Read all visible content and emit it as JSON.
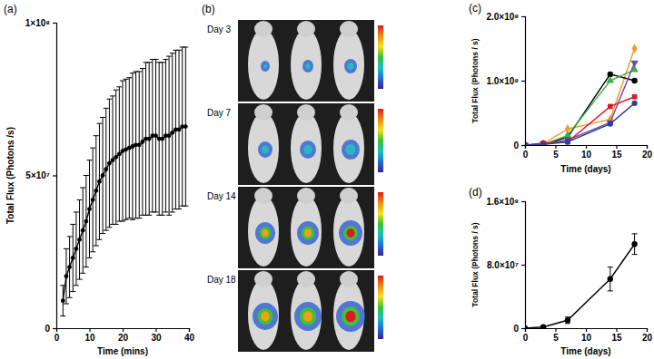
{
  "chart_data": [
    {
      "type": "line",
      "title": "(a)",
      "x_label": "Time (mins)",
      "y_label": "Total Flux (Photons /s)",
      "x": [
        2,
        3,
        4,
        5,
        6,
        7,
        8,
        9,
        10,
        11,
        12,
        13,
        14,
        15,
        16,
        17,
        18,
        19,
        20,
        21,
        22,
        23,
        24,
        25,
        26,
        27,
        28,
        29,
        30,
        31,
        32,
        33,
        34,
        35,
        36,
        37,
        38,
        39
      ],
      "values": [
        9000000,
        17000000,
        20000000,
        23000000,
        26000000,
        29000000,
        32000000,
        35000000,
        39000000,
        42000000,
        45000000,
        48000000,
        50000000,
        52000000,
        54000000,
        55000000,
        56000000,
        57000000,
        58000000,
        58500000,
        59000000,
        59500000,
        60000000,
        60000000,
        61000000,
        62000000,
        62000000,
        63000000,
        63000000,
        62000000,
        62000000,
        63000000,
        63000000,
        64000000,
        65000000,
        65000000,
        66000000,
        66000000
      ],
      "errors": [
        5000000,
        9000000,
        10000000,
        11000000,
        12000000,
        13000000,
        14000000,
        15000000,
        16000000,
        17000000,
        18000000,
        19000000,
        19000000,
        20000000,
        21000000,
        21000000,
        22000000,
        22000000,
        23000000,
        23000000,
        23000000,
        24000000,
        24000000,
        24000000,
        24000000,
        25000000,
        25000000,
        25000000,
        25000000,
        25000000,
        25000000,
        25000000,
        26000000,
        26000000,
        26000000,
        26000000,
        26000000,
        26000000
      ],
      "color": "#000000",
      "marker": "circle",
      "xlim": [
        0,
        40
      ],
      "xticks": [
        0,
        10,
        20,
        30,
        40
      ],
      "ylim": [
        0,
        100000000
      ],
      "yticks": [
        {
          "value": 0,
          "label": "0"
        },
        {
          "value": 50000000,
          "label": "5×10⁷"
        },
        {
          "value": 100000000,
          "label": "1×10⁸"
        }
      ]
    },
    {
      "type": "image",
      "title": "(b)",
      "labels": [
        "Day 3",
        "Day 7",
        "Day 14",
        "Day 18"
      ]
    },
    {
      "type": "line",
      "title": "(c)",
      "x_label": "Time (days)",
      "y_label": "Total Flux (Photons / s)",
      "x": [
        0,
        3,
        7,
        14,
        18
      ],
      "series": [
        {
          "color": "#f39c2e",
          "marker": "diamond",
          "values": [
            0,
            2000000,
            25000000,
            40000000,
            150000000
          ]
        },
        {
          "color": "#000000",
          "marker": "circle",
          "values": [
            0,
            1000000,
            12000000,
            110000000,
            100000000
          ]
        },
        {
          "color": "#3cb043",
          "marker": "triangle-up",
          "values": [
            0,
            1000000,
            15000000,
            100000000,
            117000000
          ]
        },
        {
          "color": "#6a4c9c",
          "marker": "triangle-down",
          "values": [
            0,
            1000000,
            8000000,
            35000000,
            128000000
          ]
        },
        {
          "color": "#e0162b",
          "marker": "square",
          "values": [
            0,
            3000000,
            5000000,
            60000000,
            75000000
          ]
        },
        {
          "color": "#2f3fa0",
          "marker": "circle",
          "values": [
            0,
            1000000,
            5000000,
            33000000,
            65000000
          ]
        }
      ],
      "xlim": [
        0,
        20
      ],
      "xticks": [
        0,
        5,
        10,
        15,
        20
      ],
      "ylim": [
        0,
        200000000
      ],
      "yticks": [
        {
          "value": 0,
          "label": "0"
        },
        {
          "value": 100000000,
          "label": "1.0×10⁸"
        },
        {
          "value": 200000000,
          "label": "2.0×10⁸"
        }
      ]
    },
    {
      "type": "line",
      "title": "(d)",
      "x_label": "Time (days)",
      "y_label": "Total Flux (Photons / s)",
      "x": [
        0,
        3,
        7,
        14,
        18
      ],
      "values": [
        0,
        1500000,
        10000000,
        62000000,
        106000000
      ],
      "errors": [
        0,
        1000000,
        4000000,
        15000000,
        13000000
      ],
      "color": "#000000",
      "marker": "circle",
      "xlim": [
        0,
        20
      ],
      "xticks": [
        0,
        5,
        10,
        15,
        20
      ],
      "ylim": [
        0,
        160000000
      ],
      "yticks": [
        {
          "value": 0,
          "label": "0"
        },
        {
          "value": 80000000,
          "label": "8.0×10⁷"
        },
        {
          "value": 160000000,
          "label": "1.6×10⁸"
        }
      ]
    }
  ]
}
